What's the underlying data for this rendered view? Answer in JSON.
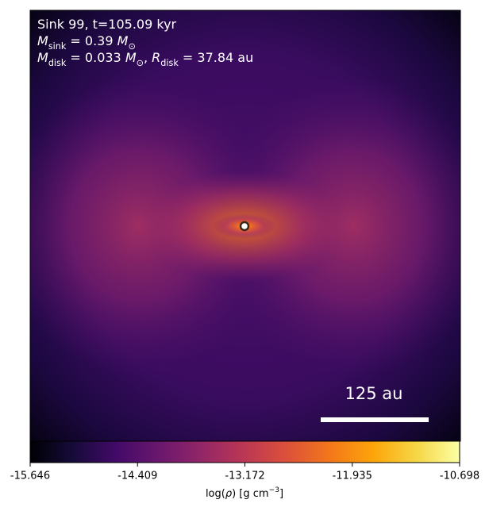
{
  "chart_data": {
    "type": "density-map",
    "colormap": "inferno",
    "annotations": [
      [
        {
          "text": "Sink 99, t=105.09 kyr"
        }
      ],
      [
        {
          "text": "M",
          "style": "italic"
        },
        {
          "text": "sink",
          "style": "sub"
        },
        {
          "text": " = 0.39 "
        },
        {
          "text": "M",
          "style": "italic"
        },
        {
          "text": "⊙",
          "style": "sub"
        }
      ],
      [
        {
          "text": "M",
          "style": "italic"
        },
        {
          "text": "disk",
          "style": "sub"
        },
        {
          "text": " = 0.033 "
        },
        {
          "text": "M",
          "style": "italic"
        },
        {
          "text": "⊙",
          "style": "sub"
        },
        {
          "text": ", "
        },
        {
          "text": "R",
          "style": "italic"
        },
        {
          "text": "disk",
          "style": "sub"
        },
        {
          "text": " = 37.84 au"
        }
      ]
    ],
    "scale_bar": {
      "value": 125,
      "label": "125 au"
    },
    "colorbar": {
      "clim": [
        -15.646,
        -10.698
      ],
      "ticks": [
        -15.646,
        -14.409,
        -13.172,
        -11.935,
        -10.698
      ],
      "label": [
        {
          "text": "log("
        },
        {
          "text": "ρ",
          "style": "italic"
        },
        {
          "text": ") [g cm"
        },
        {
          "text": "−3",
          "style": "sup"
        },
        {
          "text": "]"
        }
      ]
    }
  }
}
